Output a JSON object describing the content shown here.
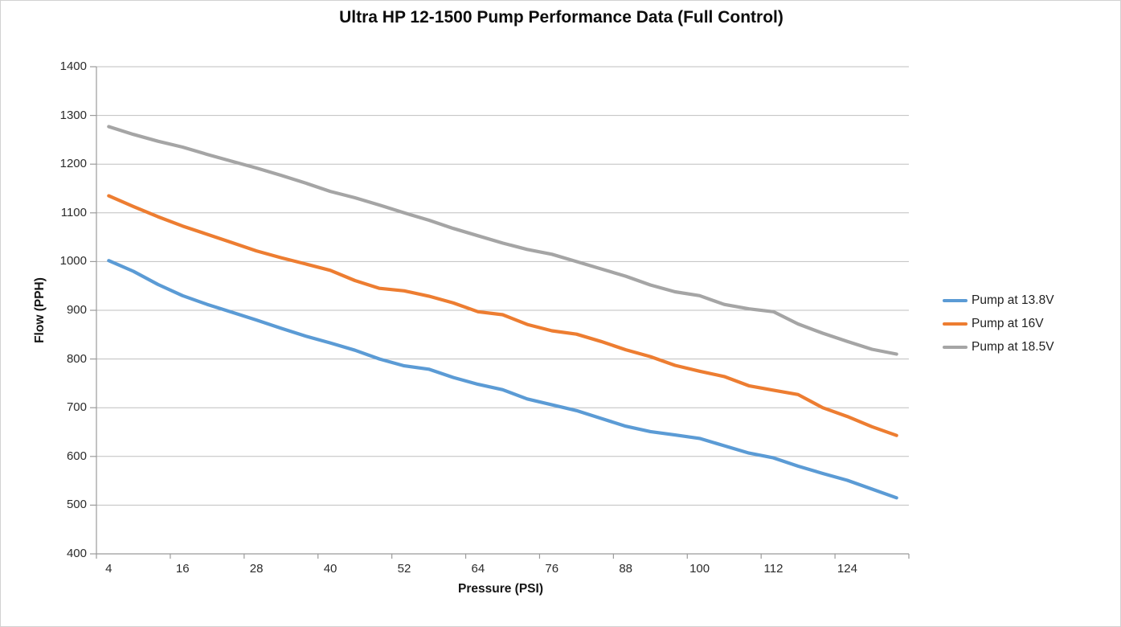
{
  "chart_data": {
    "type": "line",
    "title": "Ultra HP 12-1500 Pump Performance Data (Full Control)",
    "xlabel": "Pressure (PSI)",
    "ylabel": "Flow (PPH)",
    "x": [
      4,
      8,
      12,
      16,
      20,
      24,
      28,
      32,
      36,
      40,
      44,
      48,
      52,
      56,
      60,
      64,
      68,
      72,
      76,
      80,
      84,
      88,
      92,
      96,
      100,
      104,
      108,
      112,
      116,
      120,
      124,
      128,
      132
    ],
    "x_axis_tick_labels": [
      "4",
      "16",
      "28",
      "40",
      "52",
      "64",
      "76",
      "88",
      "100",
      "112",
      "124"
    ],
    "x_label_every_n_points": 3,
    "ylim": [
      400,
      1400
    ],
    "y_tick_interval": 100,
    "grid": "horizontal",
    "legend_position": "right",
    "series": [
      {
        "name": "Pump at 13.8V",
        "color": "#5B9BD5",
        "values": [
          1002,
          980,
          953,
          930,
          912,
          896,
          880,
          863,
          847,
          833,
          818,
          800,
          786,
          779,
          762,
          748,
          737,
          718,
          706,
          694,
          678,
          662,
          651,
          644,
          637,
          622,
          607,
          597,
          580,
          565,
          551,
          533,
          515
        ]
      },
      {
        "name": "Pump at 16V",
        "color": "#ED7D31",
        "values": [
          1135,
          1113,
          1092,
          1073,
          1056,
          1039,
          1022,
          1008,
          995,
          982,
          961,
          945,
          940,
          929,
          915,
          897,
          891,
          871,
          858,
          851,
          836,
          819,
          805,
          787,
          775,
          764,
          745,
          736,
          727,
          700,
          682,
          661,
          643
        ]
      },
      {
        "name": "Pump at 18.5V",
        "color": "#A5A5A5",
        "values": [
          1277,
          1261,
          1247,
          1235,
          1220,
          1206,
          1192,
          1177,
          1161,
          1144,
          1131,
          1116,
          1100,
          1085,
          1068,
          1053,
          1038,
          1025,
          1015,
          1000,
          985,
          970,
          952,
          938,
          930,
          912,
          903,
          897,
          872,
          853,
          836,
          820,
          810
        ]
      }
    ],
    "colors": {
      "gridline": "#BFBFBF",
      "axis": "#9B9B9B",
      "title_text": "#0d0d0d",
      "tick_text": "#2b2b2b"
    }
  }
}
